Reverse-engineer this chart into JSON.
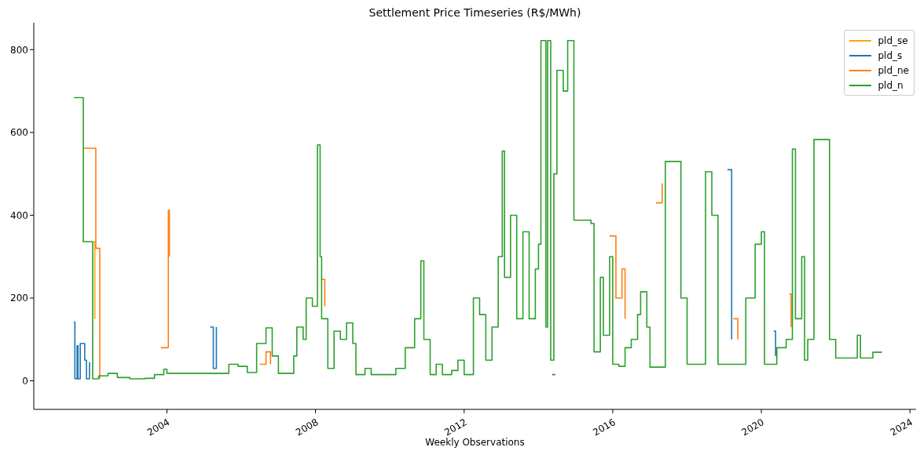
{
  "chart_data": {
    "type": "step",
    "title": "Settlement Price Timeseries (R$/MWh)",
    "xlabel": "Weekly Observations",
    "xlim": [
      "2000-06",
      "2024-03"
    ],
    "xticks": [
      "2004",
      "2008",
      "2012",
      "2016",
      "2020",
      "2024"
    ],
    "ylim": [
      -69,
      865
    ],
    "yticks": [
      0,
      200,
      400,
      600,
      800
    ],
    "legend": "top right",
    "line_style": "solid",
    "marker": "none",
    "series": [
      {
        "name": "pld_se",
        "color": "#ffa500",
        "x": [
          "2002-01-05",
          "2002-01-20",
          "2002-01-22"
        ],
        "values": [
          336,
          336,
          150
        ]
      },
      {
        "name": "pld_s",
        "color": "#1f77b4",
        "x": [
          "2001-07-01",
          "2001-07-10",
          "2001-08-01",
          "2001-08-10",
          "2001-09-01",
          "2001-10-15",
          "2001-11-01",
          "2001-12-01",
          "2002-06",
          "2005-03",
          "2005-04",
          "2005-05",
          "2006-01",
          "2014-05-15",
          "2014-06-15",
          "2015-01",
          "2019-02",
          "2019-03-15",
          "2019-06",
          "2020-05",
          "2020-05-20"
        ],
        "values": [
          142,
          5,
          85,
          5,
          90,
          50,
          5,
          45,
          null,
          130,
          30,
          130,
          null,
          15,
          15,
          null,
          510,
          100,
          null,
          120,
          60
        ]
      },
      {
        "name": "pld_ne",
        "color": "#ff7f0e",
        "x": [
          "2001-10-01",
          "2002-01-25",
          "2002-02-01",
          "2002-03-05",
          "2002-03-12",
          "2002-06",
          "2003-11",
          "2004-01-15",
          "2004-01-25",
          "2005-01",
          "2006-07",
          "2006-09",
          "2006-10-15",
          "2007-01",
          "2008-03",
          "2008-04",
          "2009-01",
          "2015-12",
          "2016-02",
          "2016-04",
          "2016-05",
          "2016-08",
          "2017-03",
          "2017-05",
          "2017-07",
          "2019-04",
          "2019-05-15",
          "2019-07",
          "2020-10",
          "2020-10-20"
        ],
        "values": [
          562,
          562,
          320,
          320,
          5,
          null,
          80,
          412,
          300,
          null,
          40,
          70,
          40,
          null,
          245,
          180,
          null,
          350,
          200,
          270,
          150,
          null,
          430,
          477,
          null,
          150,
          100,
          null,
          210,
          130
        ]
      },
      {
        "name": "pld_n",
        "color": "#2ca02c",
        "x": [
          "2001-07-01",
          "2001-09-25",
          "2001-10-01",
          "2001-12-25",
          "2002-01-01",
          "2002-03",
          "2002-06",
          "2002-09",
          "2003-01",
          "2003-06",
          "2003-09",
          "2003-12",
          "2004-01",
          "2005-01",
          "2005-06",
          "2005-09",
          "2005-12",
          "2006-03",
          "2006-06",
          "2006-09",
          "2006-11",
          "2007-01",
          "2007-04",
          "2007-06",
          "2007-07",
          "2007-09",
          "2007-10",
          "2007-12",
          "2008-01-20",
          "2008-02-15",
          "2008-03",
          "2008-05",
          "2008-07",
          "2008-09",
          "2008-11",
          "2009-01",
          "2009-02",
          "2009-05",
          "2009-07",
          "2010-01",
          "2010-03",
          "2010-06",
          "2010-09",
          "2010-11",
          "2010-12",
          "2011-02",
          "2011-04",
          "2011-06",
          "2011-09",
          "2011-11",
          "2012-01",
          "2012-02",
          "2012-04",
          "2012-06",
          "2012-08",
          "2012-10",
          "2012-12",
          "2013-01-10",
          "2013-02",
          "2013-04",
          "2013-06",
          "2013-08",
          "2013-10",
          "2013-12",
          "2014-01",
          "2014-01-25",
          "2014-03",
          "2014-03-15",
          "2014-04",
          "2014-05",
          "2014-06",
          "2014-07",
          "2014-09",
          "2014-10-15",
          "2014-11-25",
          "2014-12-15",
          "2015-05",
          "2015-06",
          "2015-07",
          "2015-09",
          "2015-10",
          "2015-12",
          "2016-01",
          "2016-03",
          "2016-05",
          "2016-07",
          "2016-09",
          "2016-10",
          "2016-12",
          "2017-01",
          "2017-04",
          "2017-06",
          "2017-08",
          "2017-11",
          "2018-01",
          "2018-05",
          "2018-07",
          "2018-08",
          "2018-09",
          "2018-11",
          "2019-05",
          "2019-08",
          "2019-11",
          "2020-01",
          "2020-02",
          "2020-04",
          "2020-06",
          "2020-09",
          "2020-11",
          "2020-12",
          "2021-02",
          "2021-03",
          "2021-04",
          "2021-06",
          "2021-09",
          "2021-11",
          "2022-01",
          "2022-07",
          "2022-08",
          "2022-09",
          "2022-12",
          "2023-01",
          "2023-04"
        ],
        "values": [
          684,
          684,
          336,
          336,
          5,
          12,
          18,
          8,
          5,
          6,
          15,
          28,
          18,
          18,
          18,
          40,
          35,
          20,
          90,
          128,
          60,
          18,
          18,
          60,
          130,
          100,
          200,
          180,
          570,
          300,
          150,
          30,
          120,
          100,
          140,
          90,
          15,
          30,
          15,
          15,
          30,
          80,
          150,
          290,
          100,
          15,
          40,
          15,
          25,
          50,
          15,
          15,
          200,
          160,
          50,
          130,
          300,
          555,
          250,
          400,
          150,
          360,
          150,
          270,
          330,
          822,
          822,
          130,
          822,
          50,
          500,
          750,
          700,
          822,
          822,
          388,
          388,
          380,
          70,
          250,
          110,
          300,
          40,
          35,
          80,
          100,
          160,
          215,
          130,
          33,
          33,
          530,
          530,
          200,
          40,
          40,
          505,
          505,
          400,
          40,
          40,
          200,
          330,
          360,
          40,
          40,
          80,
          100,
          560,
          150,
          300,
          50,
          100,
          583,
          583,
          100,
          55,
          55,
          110,
          55,
          55,
          69,
          69
        ]
      }
    ]
  }
}
